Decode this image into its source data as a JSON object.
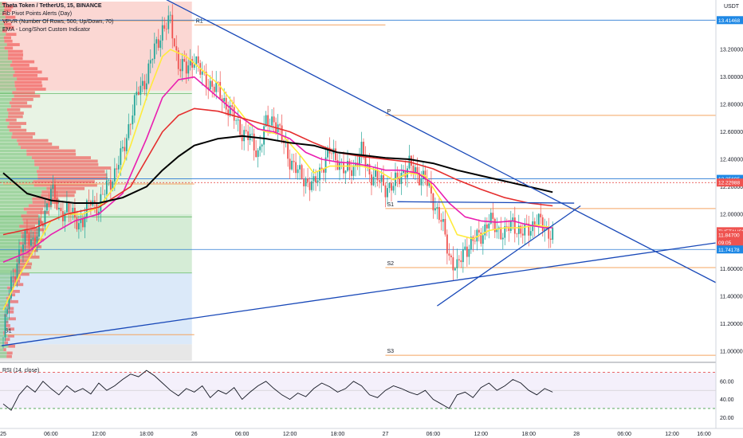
{
  "legend": {
    "title": "Theta Token / TetherUS, 15, BINANCE",
    "line1": "Fib Pivot Points Alerts (Day)",
    "line2": "VPVR (Number Of Rows, 500, Up/Down, 70)",
    "line3": "EMA - Long/Short Custom Indicator"
  },
  "currency": "USDT",
  "rsi_title": "RSI (14, close)",
  "colors": {
    "ema_yellow": "#ffeb3b",
    "ema_magenta": "#e91eb0",
    "ema_red": "#e52d2d",
    "ema_black": "#000000",
    "trendline": "#1848b8",
    "pivot": "#f4a460",
    "hline_blue": "#2a7bd4",
    "hline_red": "#e53935",
    "badge_blue": "#1e88e5",
    "badge_red": "#ef5350",
    "zone_red": "#fbd7d3",
    "zone_green": "#d5ecd6",
    "zone_blue": "#dbe9f9",
    "zone_gray": "#e7e7e7",
    "candle_up": "#26a69a",
    "candle_down": "#ef5350"
  },
  "chart_data": {
    "type": "candlestick",
    "symbol": "THETAUSDT",
    "exchange": "BINANCE",
    "interval": "15",
    "y_axis": {
      "range": [
        10.93,
        13.55
      ],
      "ticks": [
        11.0,
        11.2,
        11.4,
        11.6,
        11.8,
        12.0,
        12.2,
        12.4,
        12.6,
        12.8,
        13.0,
        13.2
      ],
      "tick_labels": [
        "11.00000",
        "11.20000",
        "11.40000",
        "11.60000",
        "11.80000",
        "12.00000",
        "12.20000",
        "12.40000",
        "12.60000",
        "12.80000",
        "13.00000",
        "13.20000"
      ]
    },
    "x_axis": {
      "tick_labels": [
        {
          "label": "25",
          "t": 0
        },
        {
          "label": "06:00",
          "t": 6
        },
        {
          "label": "12:00",
          "t": 12
        },
        {
          "label": "18:00",
          "t": 18
        },
        {
          "label": "26",
          "t": 24
        },
        {
          "label": "06:00",
          "t": 30
        },
        {
          "label": "12:00",
          "t": 36
        },
        {
          "label": "18:00",
          "t": 42
        },
        {
          "label": "27",
          "t": 48
        },
        {
          "label": "06:00",
          "t": 54
        },
        {
          "label": "12:00",
          "t": 60
        },
        {
          "label": "18:00",
          "t": 66
        },
        {
          "label": "28",
          "t": 72
        },
        {
          "label": "06:00",
          "t": 78
        },
        {
          "label": "12:00",
          "t": 84
        },
        {
          "label": "16:00",
          "t": 88
        }
      ],
      "range_hours": [
        -0.4,
        89.5
      ]
    },
    "price_badges": [
      {
        "label": "13.41468",
        "value": 13.41468,
        "color": "#1e88e5"
      },
      {
        "label": "12.25695",
        "value": 12.25695,
        "color": "#1e88e5"
      },
      {
        "label": "12.22988",
        "value": 12.22988,
        "color": "#ef5350"
      },
      {
        "label": "THETAUSDT",
        "value": 11.875,
        "color": "#ef5350"
      },
      {
        "label": "11.84700",
        "value": 11.847,
        "color": "#ef5350"
      },
      {
        "label": "09:05",
        "value": 11.793,
        "color": "#ef5350"
      },
      {
        "label": "11.74178",
        "value": 11.74178,
        "color": "#1e88e5"
      }
    ],
    "pivots": [
      {
        "label": "R1",
        "value": 13.41,
        "t_start": 0,
        "t_end": 24,
        "labeled": false
      },
      {
        "label": "P",
        "value": 12.22,
        "t_start": 0,
        "t_end": 24,
        "labeled": false
      },
      {
        "label": "S1",
        "value": 11.12,
        "t_start": 0,
        "t_end": 24,
        "labeled": true
      },
      {
        "label": "R1",
        "value": 13.38,
        "t_start": 24,
        "t_end": 48,
        "labeled": true
      },
      {
        "label": "P",
        "value": 12.72,
        "t_start": 48,
        "t_end": 89.5,
        "labeled": true
      },
      {
        "label": "S1",
        "value": 12.04,
        "t_start": 48,
        "t_end": 89.5,
        "labeled": true
      },
      {
        "label": "S2",
        "value": 11.61,
        "t_start": 48,
        "t_end": 89.5,
        "labeled": true
      },
      {
        "label": "S3",
        "value": 10.97,
        "t_start": 48,
        "t_end": 89.5,
        "labeled": true
      }
    ],
    "horizontal_lines": [
      {
        "value": 13.41468,
        "color": "#2a7bd4",
        "style": "solid"
      },
      {
        "value": 12.25695,
        "color": "#2a7bd4",
        "style": "solid"
      },
      {
        "value": 12.22988,
        "color": "#e53935",
        "style": "dotted"
      },
      {
        "value": 11.74178,
        "color": "#2a7bd4",
        "style": "solid"
      }
    ],
    "trendlines": [
      {
        "from": {
          "t": 20.3,
          "v": 13.57
        },
        "to": {
          "t": 89.5,
          "v": 11.5
        }
      },
      {
        "from": {
          "t": -0.2,
          "v": 11.04
        },
        "to": {
          "t": 89.5,
          "v": 11.79
        }
      },
      {
        "from": {
          "t": 54.5,
          "v": 11.33
        },
        "to": {
          "t": 72.5,
          "v": 12.06
        }
      },
      {
        "from": {
          "t": 49.5,
          "v": 12.09
        },
        "to": {
          "t": 71.7,
          "v": 12.08
        }
      }
    ],
    "price_path": [
      [
        0,
        11.1
      ],
      [
        1,
        11.5
      ],
      [
        2,
        11.7
      ],
      [
        3,
        11.85
      ],
      [
        4,
        11.8
      ],
      [
        5,
        11.95
      ],
      [
        6,
        12.2
      ],
      [
        7,
        12.0
      ],
      [
        8,
        12.05
      ],
      [
        9,
        11.95
      ],
      [
        10,
        11.95
      ],
      [
        11,
        12.1
      ],
      [
        12,
        12.05
      ],
      [
        13,
        12.2
      ],
      [
        14,
        12.3
      ],
      [
        15,
        12.45
      ],
      [
        16,
        12.7
      ],
      [
        17,
        12.9
      ],
      [
        18,
        13.0
      ],
      [
        19,
        13.2
      ],
      [
        20,
        13.35
      ],
      [
        21,
        13.4
      ],
      [
        22,
        13.1
      ],
      [
        23,
        13.05
      ],
      [
        24,
        13.15
      ],
      [
        25,
        13.0
      ],
      [
        26,
        12.95
      ],
      [
        27,
        12.9
      ],
      [
        28,
        12.8
      ],
      [
        29,
        12.7
      ],
      [
        30,
        12.6
      ],
      [
        31,
        12.55
      ],
      [
        32,
        12.45
      ],
      [
        33,
        12.65
      ],
      [
        34,
        12.7
      ],
      [
        35,
        12.55
      ],
      [
        36,
        12.4
      ],
      [
        37,
        12.3
      ],
      [
        38,
        12.25
      ],
      [
        39,
        12.2
      ],
      [
        40,
        12.35
      ],
      [
        41,
        12.45
      ],
      [
        42,
        12.4
      ],
      [
        43,
        12.3
      ],
      [
        44,
        12.35
      ],
      [
        45,
        12.45
      ],
      [
        46,
        12.3
      ],
      [
        47,
        12.25
      ],
      [
        48,
        12.2
      ],
      [
        49,
        12.2
      ],
      [
        50,
        12.3
      ],
      [
        51,
        12.35
      ],
      [
        52,
        12.3
      ],
      [
        53,
        12.25
      ],
      [
        54,
        12.1
      ],
      [
        55,
        11.95
      ],
      [
        56,
        11.7
      ],
      [
        57,
        11.6
      ],
      [
        58,
        11.75
      ],
      [
        59,
        11.8
      ],
      [
        60,
        11.85
      ],
      [
        61,
        11.95
      ],
      [
        62,
        11.9
      ],
      [
        63,
        11.85
      ],
      [
        64,
        11.95
      ],
      [
        65,
        11.85
      ],
      [
        66,
        11.9
      ],
      [
        67,
        11.95
      ],
      [
        68,
        11.9
      ],
      [
        69,
        11.85
      ]
    ],
    "ema_series": [
      {
        "color": "#ffeb3b",
        "values": [
          [
            0,
            11.3
          ],
          [
            2,
            11.55
          ],
          [
            4,
            11.75
          ],
          [
            6,
            11.95
          ],
          [
            8,
            12.0
          ],
          [
            10,
            12.0
          ],
          [
            12,
            12.05
          ],
          [
            14,
            12.2
          ],
          [
            16,
            12.5
          ],
          [
            18,
            12.85
          ],
          [
            20,
            13.15
          ],
          [
            21,
            13.2
          ],
          [
            23,
            13.15
          ],
          [
            25,
            13.05
          ],
          [
            27,
            12.95
          ],
          [
            29,
            12.8
          ],
          [
            31,
            12.65
          ],
          [
            33,
            12.6
          ],
          [
            35,
            12.58
          ],
          [
            37,
            12.45
          ],
          [
            39,
            12.3
          ],
          [
            41,
            12.35
          ],
          [
            43,
            12.35
          ],
          [
            45,
            12.35
          ],
          [
            47,
            12.32
          ],
          [
            49,
            12.25
          ],
          [
            51,
            12.3
          ],
          [
            53,
            12.28
          ],
          [
            55,
            12.1
          ],
          [
            57,
            11.85
          ],
          [
            59,
            11.82
          ],
          [
            61,
            11.88
          ],
          [
            63,
            11.9
          ],
          [
            65,
            11.9
          ],
          [
            67,
            11.92
          ],
          [
            69,
            11.9
          ]
        ]
      },
      {
        "color": "#e91eb0",
        "values": [
          [
            0,
            11.65
          ],
          [
            3,
            11.72
          ],
          [
            6,
            11.85
          ],
          [
            9,
            11.95
          ],
          [
            12,
            12.0
          ],
          [
            15,
            12.15
          ],
          [
            18,
            12.55
          ],
          [
            20,
            12.85
          ],
          [
            22,
            12.98
          ],
          [
            24,
            13.0
          ],
          [
            26,
            12.9
          ],
          [
            28,
            12.8
          ],
          [
            30,
            12.7
          ],
          [
            32,
            12.62
          ],
          [
            34,
            12.6
          ],
          [
            36,
            12.55
          ],
          [
            38,
            12.45
          ],
          [
            40,
            12.4
          ],
          [
            42,
            12.38
          ],
          [
            44,
            12.37
          ],
          [
            46,
            12.35
          ],
          [
            48,
            12.32
          ],
          [
            50,
            12.32
          ],
          [
            52,
            12.3
          ],
          [
            54,
            12.22
          ],
          [
            56,
            12.08
          ],
          [
            58,
            11.98
          ],
          [
            60,
            11.95
          ],
          [
            62,
            11.94
          ],
          [
            64,
            11.95
          ],
          [
            66,
            11.92
          ],
          [
            68,
            11.9
          ],
          [
            69,
            11.9
          ]
        ]
      },
      {
        "color": "#e52d2d",
        "values": [
          [
            0,
            11.85
          ],
          [
            4,
            11.9
          ],
          [
            8,
            12.0
          ],
          [
            12,
            12.05
          ],
          [
            16,
            12.2
          ],
          [
            18,
            12.4
          ],
          [
            20,
            12.6
          ],
          [
            22,
            12.72
          ],
          [
            24,
            12.77
          ],
          [
            27,
            12.75
          ],
          [
            30,
            12.7
          ],
          [
            33,
            12.65
          ],
          [
            36,
            12.6
          ],
          [
            39,
            12.52
          ],
          [
            42,
            12.45
          ],
          [
            45,
            12.42
          ],
          [
            48,
            12.4
          ],
          [
            51,
            12.38
          ],
          [
            54,
            12.33
          ],
          [
            57,
            12.25
          ],
          [
            60,
            12.18
          ],
          [
            63,
            12.12
          ],
          [
            66,
            12.08
          ],
          [
            69,
            12.06
          ]
        ]
      },
      {
        "color": "#000000",
        "values": [
          [
            0,
            12.3
          ],
          [
            3,
            12.15
          ],
          [
            6,
            12.1
          ],
          [
            9,
            12.08
          ],
          [
            12,
            12.08
          ],
          [
            15,
            12.12
          ],
          [
            18,
            12.2
          ],
          [
            20,
            12.32
          ],
          [
            22,
            12.42
          ],
          [
            24,
            12.5
          ],
          [
            27,
            12.55
          ],
          [
            30,
            12.57
          ],
          [
            33,
            12.55
          ],
          [
            36,
            12.52
          ],
          [
            39,
            12.5
          ],
          [
            42,
            12.45
          ],
          [
            45,
            12.43
          ],
          [
            48,
            12.41
          ],
          [
            51,
            12.4
          ],
          [
            54,
            12.37
          ],
          [
            57,
            12.32
          ],
          [
            60,
            12.28
          ],
          [
            63,
            12.24
          ],
          [
            66,
            12.2
          ],
          [
            69,
            12.16
          ]
        ]
      }
    ],
    "rsi": {
      "label": "RSI (14, close)",
      "ticks": [
        20,
        40,
        60
      ],
      "tick_labels": [
        "20.00",
        "40.00",
        "60.00"
      ],
      "overbought": 70,
      "oversold": 30,
      "values": [
        [
          0,
          35
        ],
        [
          1,
          28
        ],
        [
          2,
          45
        ],
        [
          3,
          55
        ],
        [
          4,
          48
        ],
        [
          5,
          60
        ],
        [
          6,
          52
        ],
        [
          7,
          45
        ],
        [
          8,
          55
        ],
        [
          9,
          48
        ],
        [
          10,
          52
        ],
        [
          11,
          46
        ],
        [
          12,
          58
        ],
        [
          13,
          50
        ],
        [
          14,
          55
        ],
        [
          15,
          62
        ],
        [
          16,
          68
        ],
        [
          17,
          65
        ],
        [
          18,
          72
        ],
        [
          19,
          66
        ],
        [
          20,
          58
        ],
        [
          21,
          50
        ],
        [
          22,
          44
        ],
        [
          23,
          52
        ],
        [
          24,
          48
        ],
        [
          25,
          55
        ],
        [
          26,
          42
        ],
        [
          27,
          50
        ],
        [
          28,
          46
        ],
        [
          29,
          53
        ],
        [
          30,
          40
        ],
        [
          31,
          48
        ],
        [
          32,
          55
        ],
        [
          33,
          60
        ],
        [
          34,
          52
        ],
        [
          35,
          45
        ],
        [
          36,
          40
        ],
        [
          37,
          47
        ],
        [
          38,
          43
        ],
        [
          39,
          52
        ],
        [
          40,
          58
        ],
        [
          41,
          54
        ],
        [
          42,
          48
        ],
        [
          43,
          52
        ],
        [
          44,
          60
        ],
        [
          45,
          55
        ],
        [
          46,
          45
        ],
        [
          47,
          42
        ],
        [
          48,
          50
        ],
        [
          49,
          55
        ],
        [
          50,
          52
        ],
        [
          51,
          48
        ],
        [
          52,
          45
        ],
        [
          53,
          50
        ],
        [
          54,
          40
        ],
        [
          55,
          35
        ],
        [
          56,
          30
        ],
        [
          57,
          45
        ],
        [
          58,
          48
        ],
        [
          59,
          42
        ],
        [
          60,
          53
        ],
        [
          61,
          58
        ],
        [
          62,
          50
        ],
        [
          63,
          55
        ],
        [
          64,
          62
        ],
        [
          65,
          58
        ],
        [
          66,
          50
        ],
        [
          67,
          45
        ],
        [
          68,
          52
        ],
        [
          69,
          48
        ]
      ]
    }
  }
}
